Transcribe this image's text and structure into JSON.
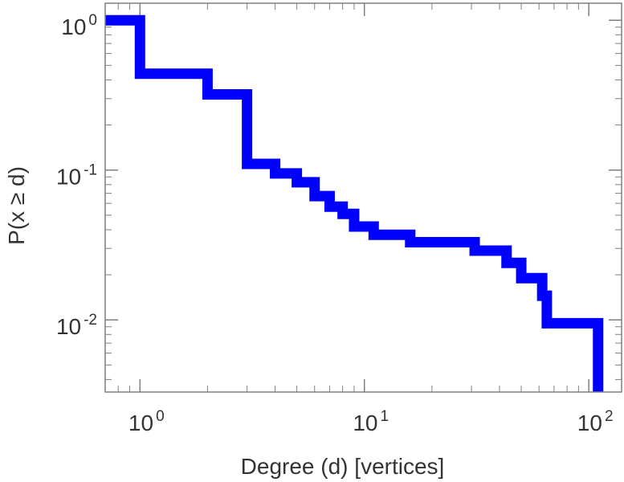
{
  "chart_data": {
    "type": "line",
    "xlabel": "Degree (d) [vertices]",
    "ylabel": "P(x ≥ d)",
    "xscale": "log",
    "yscale": "log",
    "xlim": [
      0.7,
      140
    ],
    "ylim": [
      0.0033,
      1.3
    ],
    "grid": false,
    "x_ticks": [
      {
        "base": "10",
        "exp": "0",
        "value": 1
      },
      {
        "base": "10",
        "exp": "1",
        "value": 10
      },
      {
        "base": "10",
        "exp": "2",
        "value": 100
      }
    ],
    "y_ticks": [
      {
        "base": "10",
        "exp": "0",
        "value": 1
      },
      {
        "base": "10",
        "exp": "-1",
        "value": 0.1
      },
      {
        "base": "10",
        "exp": "-2",
        "value": 0.01
      }
    ],
    "series": [
      {
        "color": "#0000ff",
        "step": "post",
        "x": [
          0.7,
          1,
          2,
          3,
          4,
          5,
          6,
          7,
          8,
          9,
          11,
          16,
          31,
          43,
          50,
          62,
          65,
          110
        ],
        "y": [
          1.0,
          0.44,
          0.32,
          0.11,
          0.095,
          0.083,
          0.067,
          0.057,
          0.051,
          0.042,
          0.037,
          0.033,
          0.029,
          0.024,
          0.019,
          0.0145,
          0.0095,
          0.0046
        ]
      }
    ]
  }
}
